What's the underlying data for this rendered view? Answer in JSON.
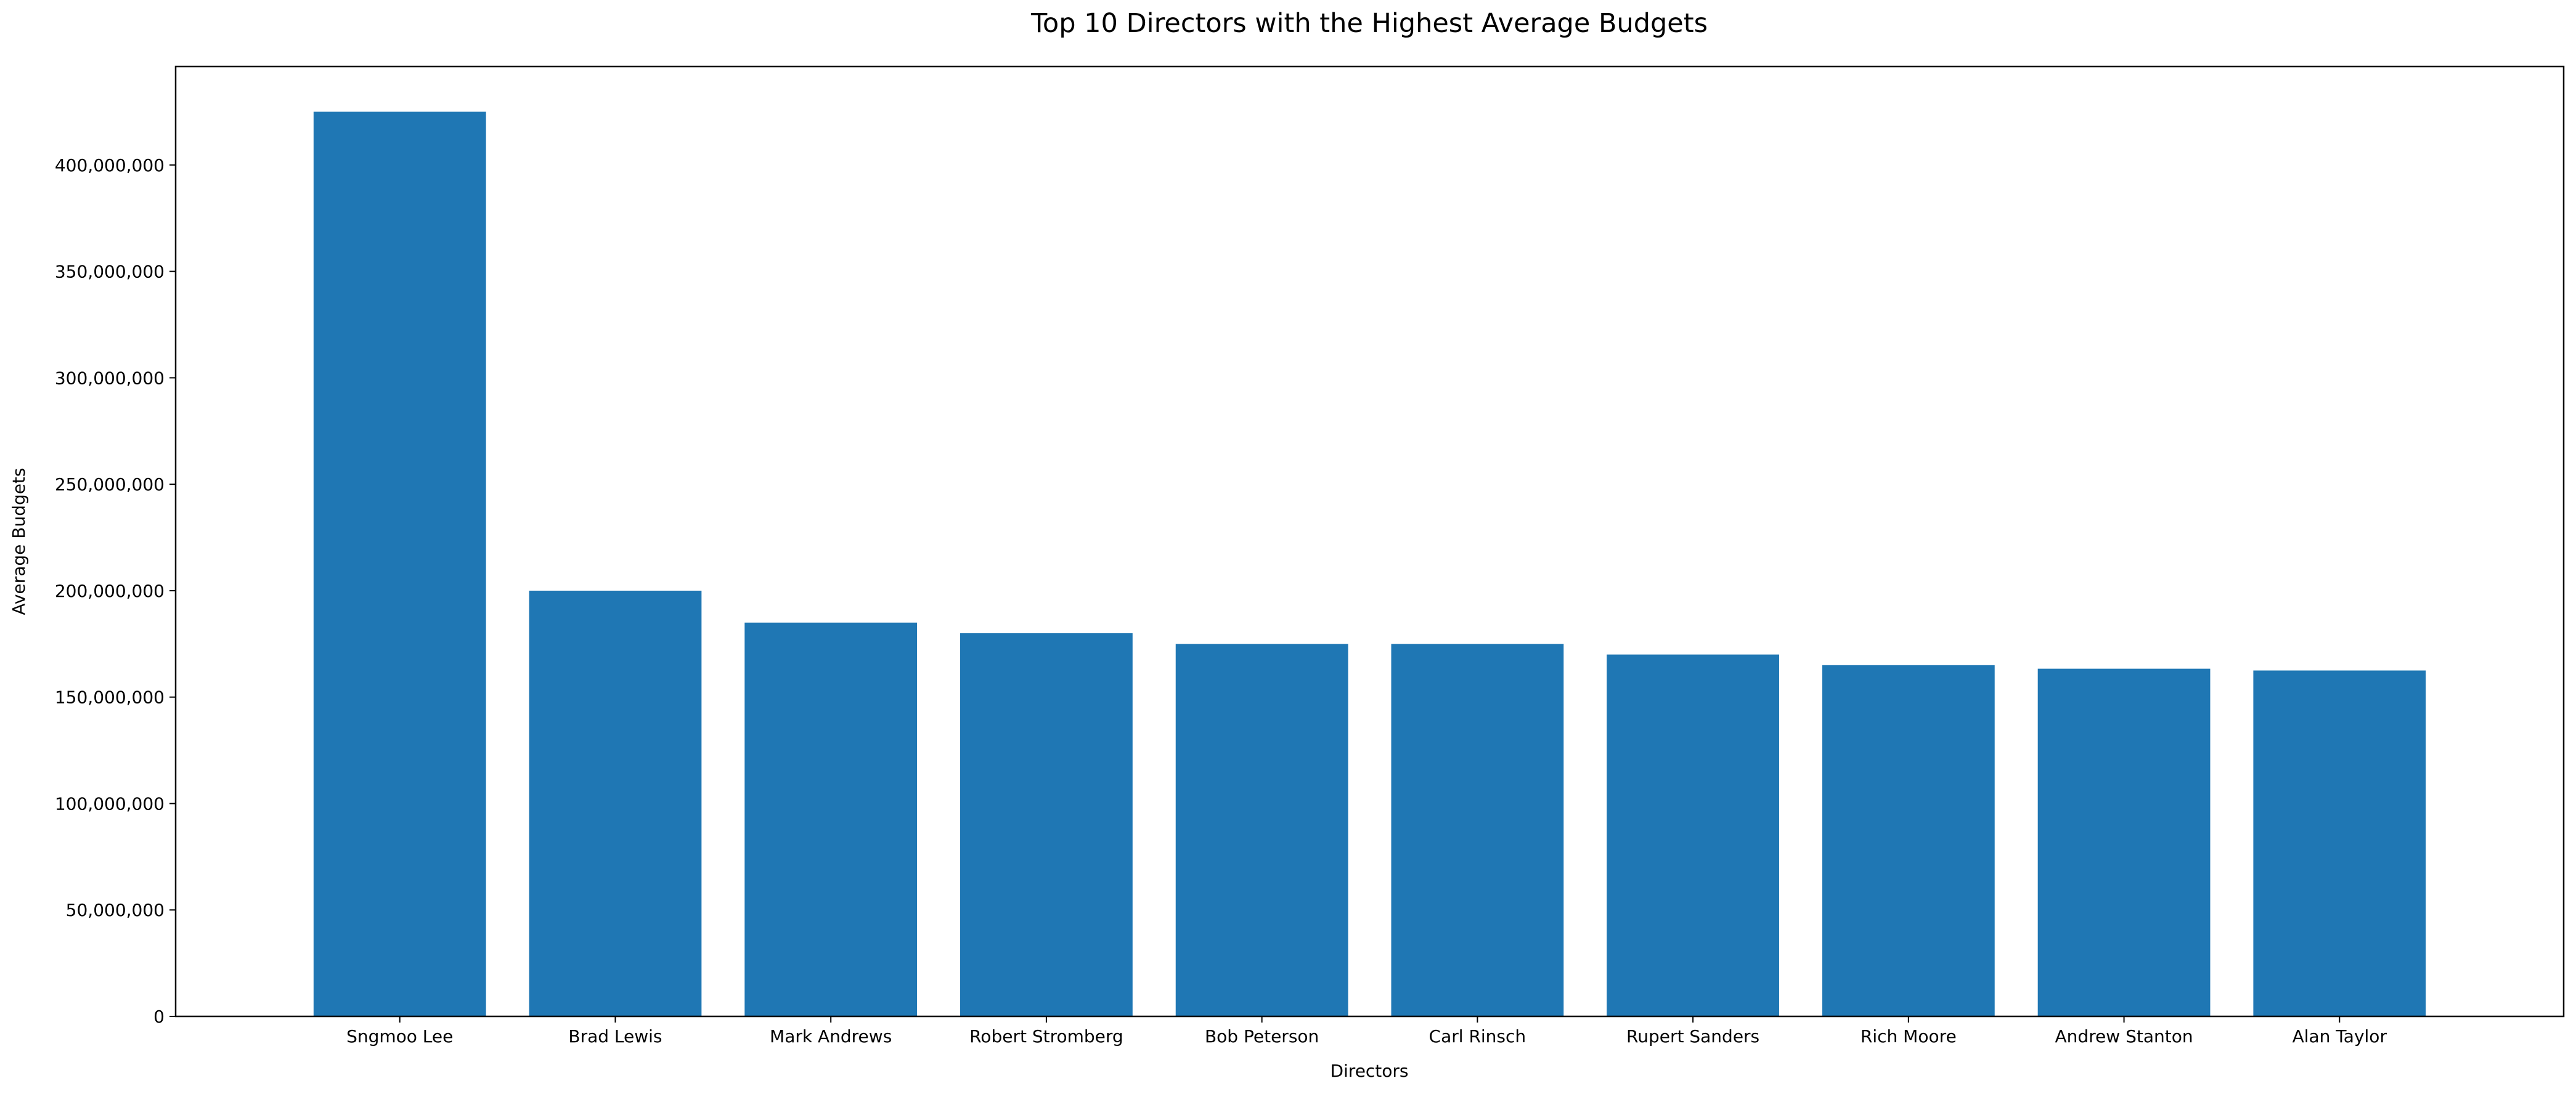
{
  "chart_data": {
    "type": "bar",
    "title": "Top 10 Directors with the Highest Average Budgets",
    "xlabel": "Directors",
    "ylabel": "Average Budgets",
    "categories": [
      "Sngmoo Lee",
      "Brad Lewis",
      "Mark Andrews",
      "Robert Stromberg",
      "Bob Peterson",
      "Carl Rinsch",
      "Rupert Sanders",
      "Rich Moore",
      "Andrew Stanton",
      "Alan Taylor"
    ],
    "values": [
      425000000,
      200000000,
      185000000,
      180000000,
      175000000,
      175000000,
      170000000,
      165000000,
      163333333,
      162500000
    ],
    "ylim": [
      0,
      446250000
    ],
    "yticks": [
      0,
      50000000,
      100000000,
      150000000,
      200000000,
      250000000,
      300000000,
      350000000,
      400000000
    ],
    "ytick_labels": [
      "0",
      "50,000,000",
      "100,000,000",
      "150,000,000",
      "200,000,000",
      "250,000,000",
      "300,000,000",
      "350,000,000",
      "400,000,000"
    ],
    "bar_color": "#1f77b4",
    "grid": false,
    "legend": "none"
  }
}
